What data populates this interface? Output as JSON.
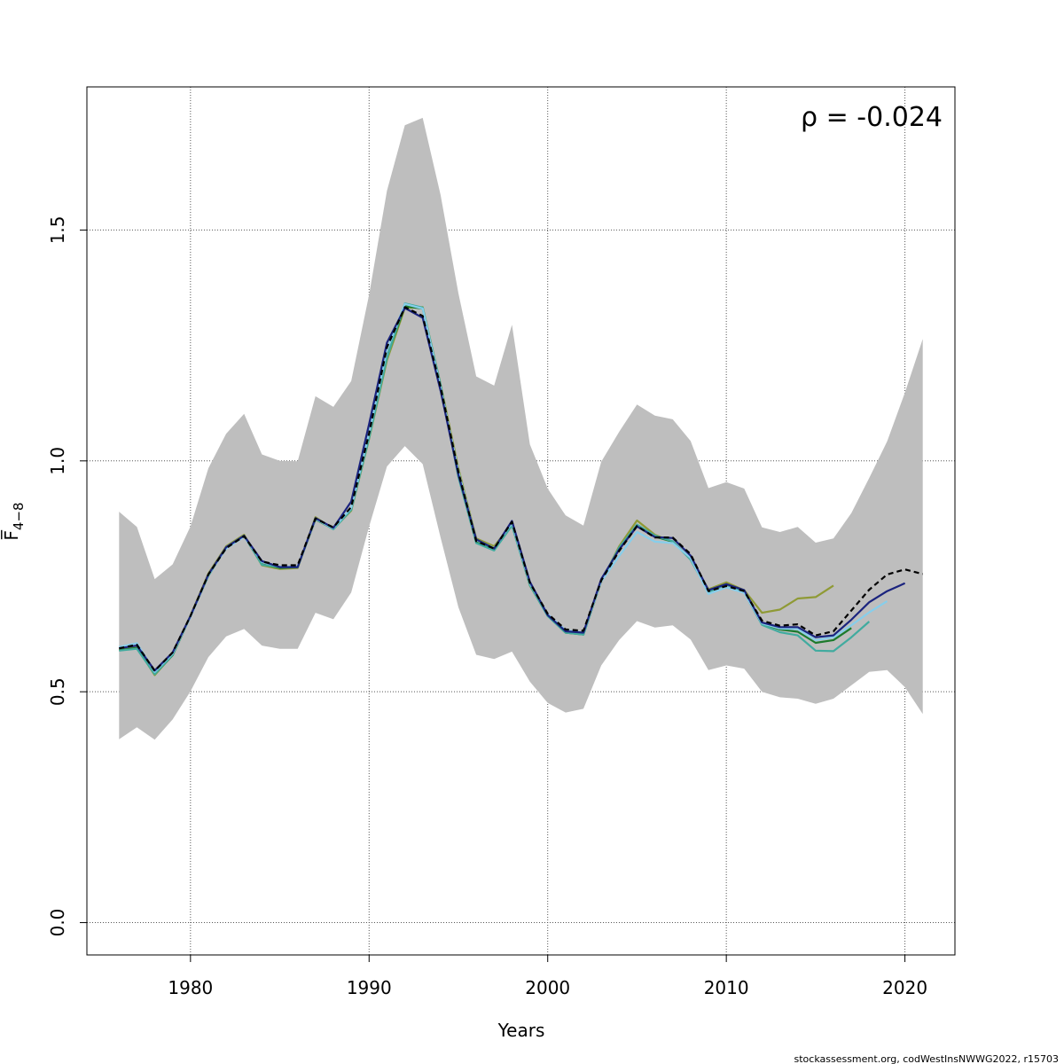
{
  "chart_data": {
    "type": "line",
    "title": "",
    "xlabel": "Years",
    "ylabel": "F̅",
    "ylabel_subscript": "4−8",
    "annotation": "ρ = -0.024",
    "footer": "stockassessment.org, codWestInsNWWG2022, r15703",
    "xlim": [
      1974.2,
      2022.8
    ],
    "ylim": [
      -0.07,
      1.81
    ],
    "x_ticks": [
      1980,
      1990,
      2000,
      2010,
      2020
    ],
    "y_ticks": [
      0.0,
      0.5,
      1.0,
      1.5
    ],
    "y_tick_labels": [
      "0.0",
      "0.5",
      "1.0",
      "1.5"
    ],
    "grid": true,
    "years": [
      1976,
      1977,
      1978,
      1979,
      1980,
      1981,
      1982,
      1983,
      1984,
      1985,
      1986,
      1987,
      1988,
      1989,
      1990,
      1991,
      1992,
      1993,
      1994,
      1995,
      1996,
      1997,
      1998,
      1999,
      2000,
      2001,
      2002,
      2003,
      2004,
      2005,
      2006,
      2007,
      2008,
      2009,
      2010,
      2011,
      2012,
      2013,
      2014,
      2015,
      2016,
      2017,
      2018,
      2019,
      2020,
      2021
    ],
    "ci_upper": [
      0.89,
      0.857,
      0.744,
      0.776,
      0.858,
      0.984,
      1.059,
      1.102,
      1.014,
      1.0,
      0.999,
      1.14,
      1.117,
      1.173,
      1.36,
      1.585,
      1.727,
      1.743,
      1.576,
      1.363,
      1.183,
      1.163,
      1.295,
      1.036,
      0.94,
      0.882,
      0.86,
      0.998,
      1.063,
      1.122,
      1.098,
      1.09,
      1.043,
      0.941,
      0.954,
      0.94,
      0.856,
      0.846,
      0.857,
      0.823,
      0.832,
      0.887,
      0.963,
      1.042,
      1.148,
      1.264
    ],
    "ci_lower": [
      0.397,
      0.423,
      0.396,
      0.44,
      0.501,
      0.575,
      0.62,
      0.636,
      0.6,
      0.593,
      0.593,
      0.671,
      0.657,
      0.715,
      0.858,
      0.988,
      1.032,
      0.993,
      0.834,
      0.683,
      0.58,
      0.571,
      0.587,
      0.522,
      0.476,
      0.455,
      0.463,
      0.557,
      0.612,
      0.653,
      0.639,
      0.644,
      0.613,
      0.547,
      0.557,
      0.55,
      0.5,
      0.488,
      0.485,
      0.474,
      0.485,
      0.514,
      0.543,
      0.547,
      0.51,
      0.452
    ],
    "series": [
      {
        "color": "#000000",
        "dashed": true,
        "values": [
          0.594,
          0.602,
          0.545,
          0.585,
          0.664,
          0.754,
          0.811,
          0.837,
          0.782,
          0.774,
          0.774,
          0.875,
          0.856,
          0.9,
          1.06,
          1.246,
          1.333,
          1.314,
          1.16,
          0.976,
          0.826,
          0.81,
          0.868,
          0.736,
          0.669,
          0.635,
          0.632,
          0.741,
          0.805,
          0.859,
          0.834,
          0.834,
          0.798,
          0.718,
          0.729,
          0.718,
          0.654,
          0.643,
          0.646,
          0.622,
          0.631,
          0.676,
          0.721,
          0.754,
          0.765,
          0.755
        ]
      },
      {
        "color": "#1a237e",
        "dashed": false,
        "values": [
          0.594,
          0.6,
          0.546,
          0.585,
          0.664,
          0.754,
          0.813,
          0.838,
          0.783,
          0.77,
          0.77,
          0.876,
          0.855,
          0.912,
          1.08,
          1.256,
          1.331,
          1.31,
          1.152,
          0.97,
          0.83,
          0.81,
          0.87,
          0.738,
          0.666,
          0.631,
          0.628,
          0.744,
          0.808,
          0.858,
          0.835,
          0.833,
          0.795,
          0.72,
          0.733,
          0.72,
          0.65,
          0.64,
          0.64,
          0.618,
          0.622,
          0.656,
          0.694,
          0.718,
          0.735
        ]
      },
      {
        "color": "#87ceeb",
        "dashed": false,
        "values": [
          0.597,
          0.605,
          0.543,
          0.583,
          0.662,
          0.753,
          0.81,
          0.836,
          0.781,
          0.771,
          0.771,
          0.874,
          0.854,
          0.898,
          1.061,
          1.24,
          1.34,
          1.33,
          1.158,
          0.978,
          0.829,
          0.811,
          0.866,
          0.735,
          0.668,
          0.633,
          0.628,
          0.739,
          0.794,
          0.846,
          0.825,
          0.822,
          0.79,
          0.712,
          0.726,
          0.714,
          0.648,
          0.637,
          0.636,
          0.612,
          0.618,
          0.644,
          0.672,
          0.696
        ]
      },
      {
        "color": "#41ab9f",
        "dashed": false,
        "values": [
          0.589,
          0.593,
          0.538,
          0.58,
          0.664,
          0.751,
          0.813,
          0.838,
          0.775,
          0.77,
          0.77,
          0.875,
          0.852,
          0.894,
          1.05,
          1.223,
          1.341,
          1.332,
          1.165,
          0.965,
          0.822,
          0.806,
          0.86,
          0.731,
          0.664,
          0.628,
          0.624,
          0.74,
          0.812,
          0.862,
          0.838,
          0.826,
          0.786,
          0.716,
          0.732,
          0.715,
          0.645,
          0.629,
          0.622,
          0.589,
          0.588,
          0.618,
          0.652
        ]
      },
      {
        "color": "#1b7a2c",
        "dashed": false,
        "values": [
          0.59,
          0.595,
          0.538,
          0.579,
          0.663,
          0.752,
          0.812,
          0.837,
          0.776,
          0.768,
          0.77,
          0.873,
          0.853,
          0.895,
          1.053,
          1.225,
          1.335,
          1.33,
          1.16,
          0.967,
          0.824,
          0.807,
          0.862,
          0.733,
          0.665,
          0.628,
          0.624,
          0.74,
          0.81,
          0.86,
          0.836,
          0.825,
          0.788,
          0.718,
          0.732,
          0.716,
          0.648,
          0.635,
          0.63,
          0.606,
          0.612,
          0.638
        ]
      },
      {
        "color": "#8f9a35",
        "dashed": false,
        "values": [
          0.59,
          0.596,
          0.536,
          0.58,
          0.665,
          0.756,
          0.815,
          0.84,
          0.774,
          0.766,
          0.768,
          0.878,
          0.853,
          0.892,
          1.048,
          1.218,
          1.331,
          1.333,
          1.166,
          0.984,
          0.832,
          0.815,
          0.863,
          0.73,
          0.665,
          0.628,
          0.626,
          0.738,
          0.815,
          0.871,
          0.84,
          0.825,
          0.787,
          0.722,
          0.737,
          0.72,
          0.671,
          0.678,
          0.702,
          0.705,
          0.73
        ]
      }
    ]
  }
}
